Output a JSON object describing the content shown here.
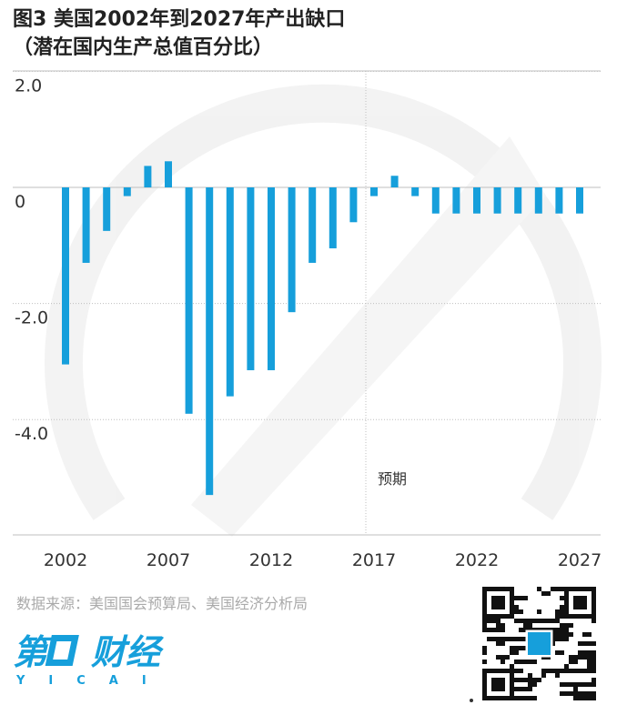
{
  "title": {
    "line1": "图3  美国2002年到2027年产出缺口",
    "line2": "（潜在国内生产总值百分比）"
  },
  "source": "数据来源：美国国会预算局、美国经济分析局",
  "logo": {
    "text": "第一财经",
    "sub": "YICAI"
  },
  "colors": {
    "bar": "#169fdb",
    "grid": "#bfbfbf",
    "text": "#333333",
    "watermark": "#e6e6e6"
  },
  "chart_data": {
    "type": "bar",
    "title": "图3  美国2002年到2027年产出缺口",
    "subtitle": "（潜在国内生产总值百分比）",
    "x": [
      2002,
      2003,
      2004,
      2005,
      2006,
      2007,
      2008,
      2009,
      2010,
      2011,
      2012,
      2013,
      2014,
      2015,
      2016,
      2017,
      2018,
      2019,
      2020,
      2021,
      2022,
      2023,
      2024,
      2025,
      2026,
      2027
    ],
    "values": [
      -3.05,
      -1.3,
      -0.75,
      -0.15,
      0.37,
      0.45,
      -3.9,
      -5.3,
      -3.6,
      -3.15,
      -3.15,
      -2.15,
      -1.3,
      -1.05,
      -0.6,
      -0.15,
      0.2,
      -0.15,
      -0.45,
      -0.45,
      -0.45,
      -0.45,
      -0.45,
      -0.45,
      -0.45,
      -0.45
    ],
    "x_tick_labels": [
      "2002",
      "2007",
      "2012",
      "2017",
      "2022",
      "2027"
    ],
    "y_tick_labels": [
      "2.0",
      "0",
      "-2.0",
      "-4.0"
    ],
    "ylim": [
      -5.9,
      2.0
    ],
    "annotation": {
      "text": "预期",
      "after_year": 2017
    },
    "grid": true
  }
}
